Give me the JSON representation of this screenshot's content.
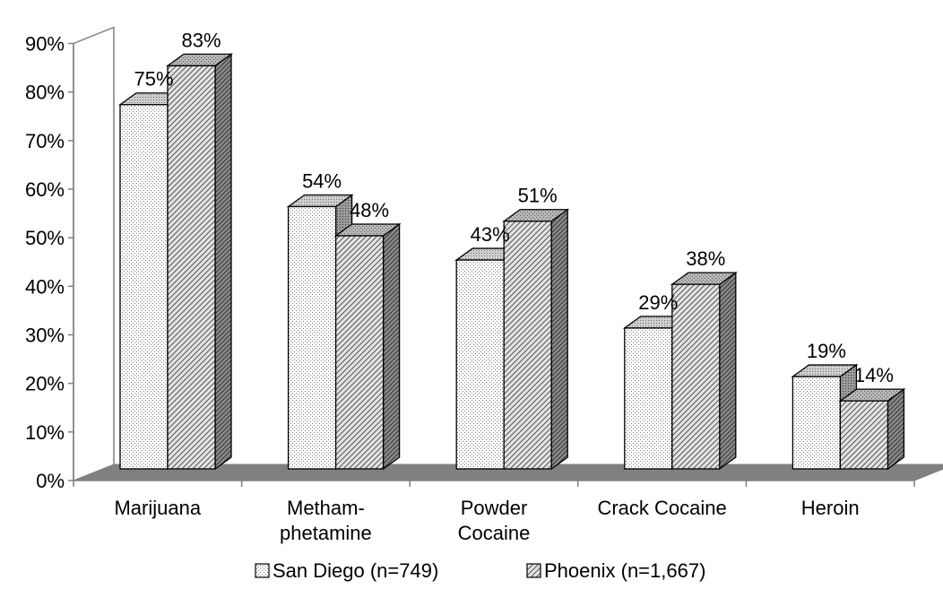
{
  "chart_data": {
    "type": "bar",
    "categories": [
      "Marijuana",
      "Metham-\nphetamine",
      "Powder\nCocaine",
      "Crack Cocaine",
      "Heroin"
    ],
    "series": [
      {
        "name": "San Diego (n=749)",
        "values": [
          75,
          54,
          43,
          29,
          19
        ],
        "color": "#ffffff"
      },
      {
        "name": "Phoenix (n=1,667)",
        "values": [
          83,
          48,
          51,
          38,
          14
        ],
        "color": "#e6e6e6"
      }
    ],
    "data_labels": [
      [
        "75%",
        "54%",
        "43%",
        "29%",
        "19%"
      ],
      [
        "83%",
        "48%",
        "51%",
        "38%",
        "14%"
      ]
    ],
    "y_ticks": [
      "0%",
      "10%",
      "20%",
      "30%",
      "40%",
      "50%",
      "60%",
      "70%",
      "80%",
      "90%"
    ],
    "ylim": [
      0,
      90
    ],
    "grid": false,
    "three_d": true,
    "floor_color": "#808080",
    "legend_position": "bottom"
  }
}
